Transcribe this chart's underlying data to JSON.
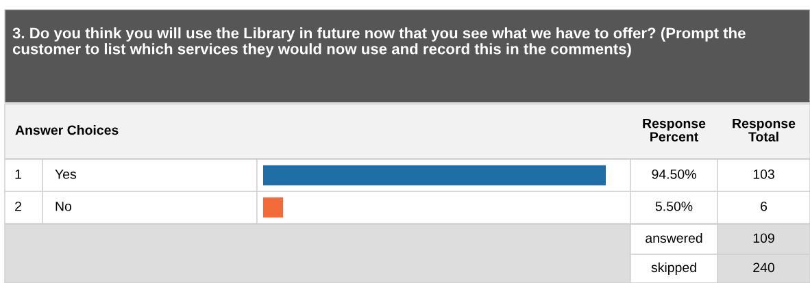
{
  "chart_data": {
    "type": "bar",
    "orientation": "horizontal",
    "title": "3. Do you think you will use the Library in future now that you see what we have to offer? (Prompt the customer to list which services they would now use and record this in the comments)",
    "categories": [
      "Yes",
      "No"
    ],
    "values": [
      94.5,
      5.5
    ],
    "colors": [
      "#1f6ea6",
      "#f26b38"
    ],
    "value_labels": [
      "94.50%",
      "5.50%"
    ],
    "annotations": [
      "Answer Choices",
      "Response Percent",
      "Response Total",
      "1",
      "2",
      "103",
      "6",
      "answered",
      "109",
      "skipped",
      "240"
    ]
  }
}
